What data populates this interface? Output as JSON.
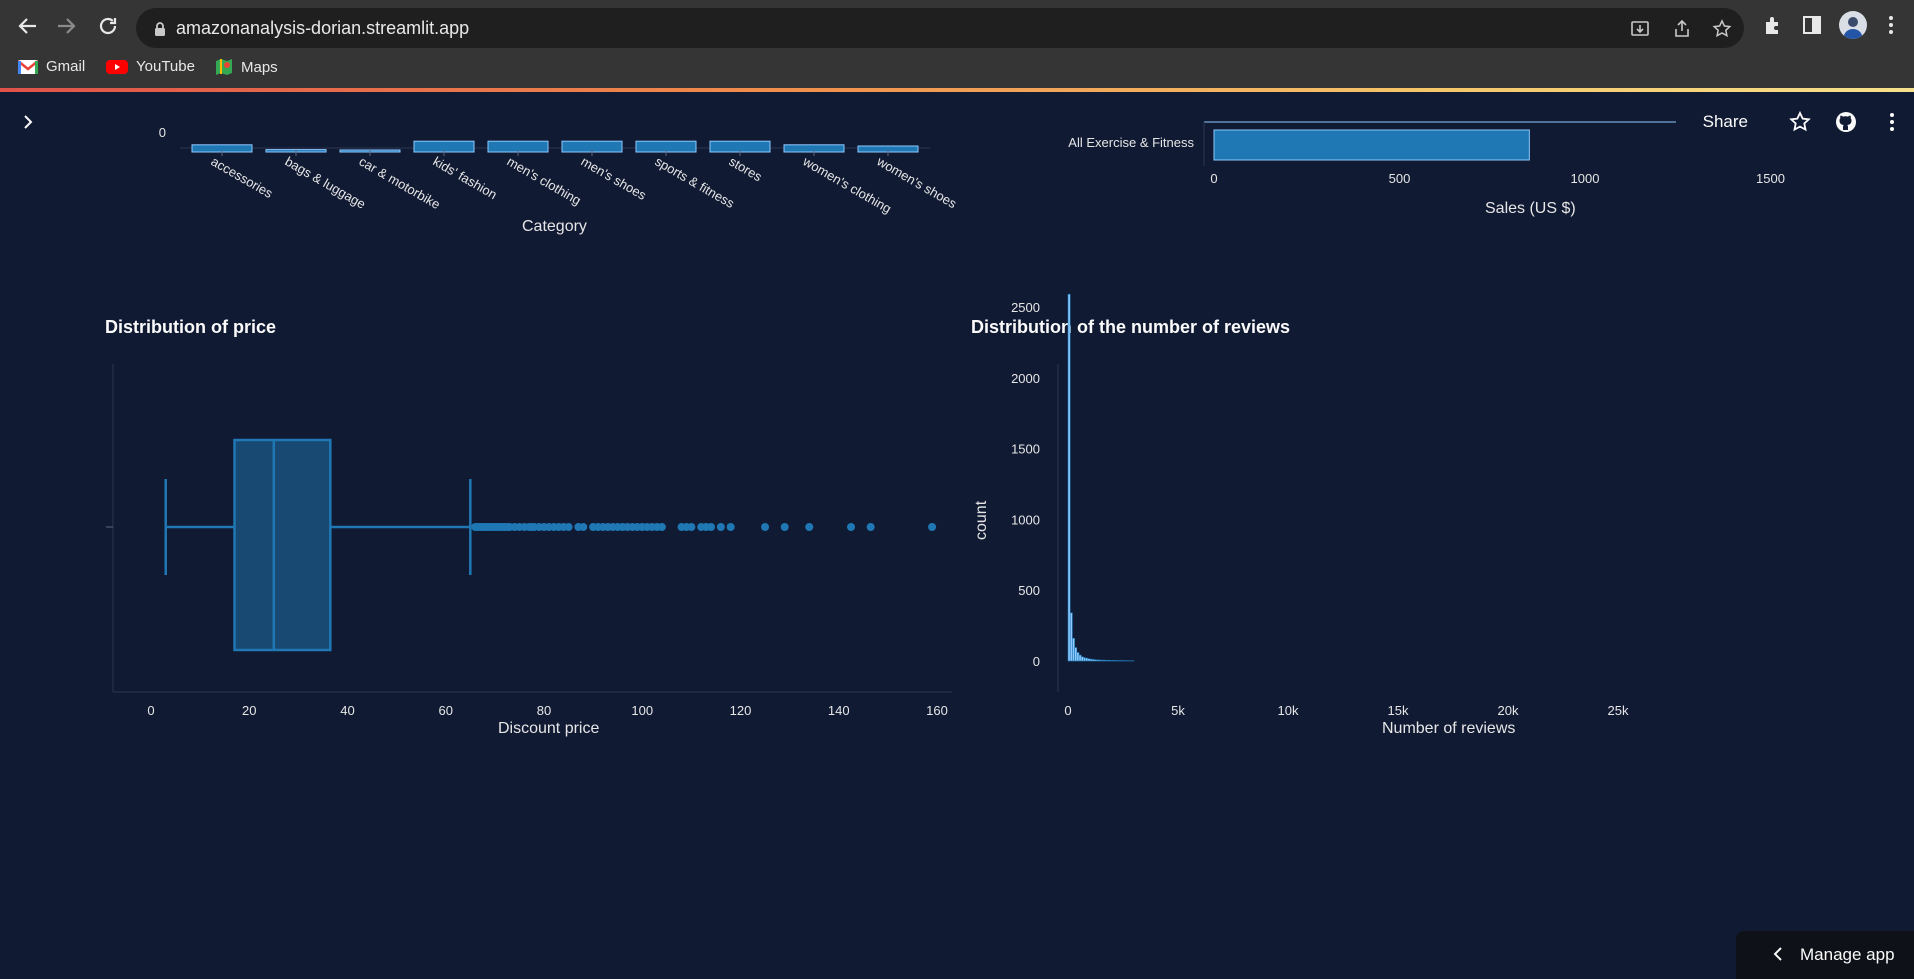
{
  "browser": {
    "url": "amazonanalysis-dorian.streamlit.app",
    "bookmarks": [
      {
        "label": "Gmail",
        "icon": "gmail-icon"
      },
      {
        "label": "YouTube",
        "icon": "youtube-icon"
      },
      {
        "label": "Maps",
        "icon": "maps-icon"
      }
    ]
  },
  "header": {
    "share_label": "Share"
  },
  "charts": {
    "category": {
      "xlabel": "Category",
      "y_tick": "0"
    },
    "sales": {
      "category_label": "All Exercise & Fitness",
      "xlabel": "Sales (US $)"
    },
    "price": {
      "title": "Distribution of price",
      "xlabel": "Discount price"
    },
    "reviews": {
      "title": "Distribution of the number of reviews",
      "xlabel": "Number of reviews",
      "ylabel": "count"
    }
  },
  "footer": {
    "manage_label": "Manage app"
  },
  "colors": {
    "background": "#111a33",
    "bar": "#1f77b4",
    "bar_light": "#8ec9ff",
    "text": "#fafafa"
  },
  "chart_data": [
    {
      "type": "bar",
      "xlabel": "Category",
      "categories": [
        "accessories",
        "bags & luggage",
        "car & motorbike",
        "kids' fashion",
        "men's clothing",
        "men's shoes",
        "sports & fitness",
        "stores",
        "women's clothing",
        "women's shoes"
      ],
      "values": [
        0.12,
        0.04,
        0.02,
        0.18,
        0.18,
        0.18,
        0.18,
        0.18,
        0.12,
        0.1
      ],
      "y_ticks": [
        "0"
      ]
    },
    {
      "type": "bar",
      "orientation": "horizontal",
      "xlabel": "Sales (US $)",
      "categories": [
        "All Exercise & Fitness"
      ],
      "values": [
        850
      ],
      "x_ticks": [
        0,
        500,
        1000,
        1500
      ],
      "xlim": [
        0,
        1680
      ]
    },
    {
      "type": "box",
      "title": "Distribution of price",
      "xlabel": "Discount price",
      "x_ticks": [
        0,
        20,
        40,
        60,
        80,
        100,
        120,
        140,
        160
      ],
      "xlim": [
        -8,
        164
      ],
      "lower_fence": 3,
      "q1": 17,
      "median": 25,
      "q3": 36.5,
      "upper_fence": 65,
      "outliers": [
        66,
        66.5,
        67,
        67.5,
        68,
        68.5,
        69,
        69.5,
        70,
        70.5,
        71,
        71.5,
        72,
        72.5,
        73,
        74,
        75,
        76,
        77,
        77.5,
        78,
        79,
        80,
        81,
        82,
        83,
        84,
        85,
        87,
        88,
        90,
        91,
        92,
        93,
        94,
        95,
        96,
        97,
        98,
        99,
        100,
        101,
        102,
        103,
        104,
        108,
        109,
        110,
        112,
        113,
        114,
        116,
        118,
        125,
        129,
        134,
        142.5,
        146.5,
        159
      ]
    },
    {
      "type": "histogram",
      "title": "Distribution of the number of reviews",
      "xlabel": "Number of reviews",
      "ylabel": "count",
      "x_ticks": [
        "0",
        "5k",
        "10k",
        "15k",
        "20k",
        "25k"
      ],
      "y_ticks": [
        0,
        500,
        1000,
        1500,
        2000,
        2500
      ],
      "xlim": [
        0,
        28500
      ],
      "ylim": [
        0,
        2650
      ],
      "bin_width": 100,
      "counts": [
        2590,
        340,
        160,
        95,
        60,
        42,
        30,
        24,
        20,
        16,
        13,
        11,
        9,
        8,
        7,
        6,
        6,
        5,
        5,
        4,
        4,
        4,
        3,
        3,
        3,
        3,
        2,
        2,
        2,
        2
      ]
    }
  ]
}
